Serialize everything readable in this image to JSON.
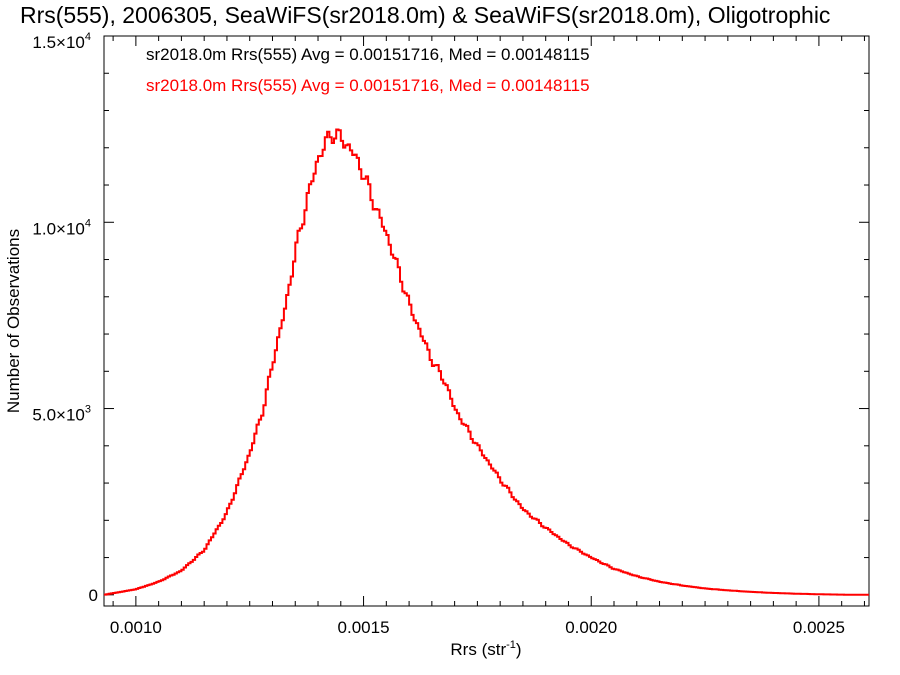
{
  "chart_data": {
    "type": "line",
    "title": "Rrs(555), 2006305, SeaWiFS(sr2018.0m) & SeaWiFS(sr2018.0m), Oligotrophic",
    "xlabel": {
      "text": "Rrs (str",
      "sup": "-1",
      "suffix": ")"
    },
    "ylabel": "Number of Observations",
    "xlim": [
      0.00093,
      0.00261
    ],
    "ylim": [
      -300,
      15000
    ],
    "x_ticks": [
      "0.0010",
      "0.0015",
      "0.0020",
      "0.0025"
    ],
    "x_tick_values": [
      0.001,
      0.0015,
      0.002,
      0.0025
    ],
    "y_ticks": [
      {
        "value": 0,
        "mant": "0",
        "exp": ""
      },
      {
        "value": 5000,
        "mant": "5.0×10",
        "exp": "3"
      },
      {
        "value": 10000,
        "mant": "1.0×10",
        "exp": "4"
      },
      {
        "value": 15000,
        "mant": "1.5×10",
        "exp": "4"
      }
    ],
    "grid": false,
    "legend_position": "top-left",
    "legend": [
      {
        "text": "sr2018.0m Rrs(555) Avg = 0.00151716, Med = 0.00148115",
        "color": "#000000"
      },
      {
        "text": "sr2018.0m Rrs(555) Avg = 0.00151716, Med = 0.00148115",
        "color": "#ff0000"
      }
    ],
    "series": [
      {
        "color": "#ff0000",
        "step": true,
        "x": [
          0.00093,
          0.001,
          0.00105,
          0.0011,
          0.00115,
          0.0012,
          0.00125,
          0.00128,
          0.0013,
          0.00133,
          0.00135,
          0.00138,
          0.0014,
          0.00142,
          0.00143,
          0.00144,
          0.00145,
          0.00146,
          0.00147,
          0.00148,
          0.0015,
          0.00152,
          0.00155,
          0.00158,
          0.0016,
          0.00163,
          0.00165,
          0.00168,
          0.0017,
          0.00175,
          0.0018,
          0.00185,
          0.0019,
          0.00195,
          0.002,
          0.00205,
          0.0021,
          0.00215,
          0.0022,
          0.00225,
          0.0023,
          0.00235,
          0.0024,
          0.00245,
          0.0025,
          0.00255,
          0.00261
        ],
        "y": [
          0,
          150,
          350,
          650,
          1200,
          2200,
          3800,
          5000,
          6200,
          7800,
          9200,
          10800,
          11700,
          12200,
          12400,
          12300,
          12300,
          12100,
          12000,
          11800,
          11300,
          10600,
          9700,
          8600,
          7800,
          6900,
          6300,
          5700,
          5000,
          4000,
          3100,
          2300,
          1800,
          1350,
          1000,
          700,
          500,
          350,
          250,
          170,
          120,
          80,
          50,
          30,
          15,
          5,
          0
        ]
      }
    ]
  }
}
